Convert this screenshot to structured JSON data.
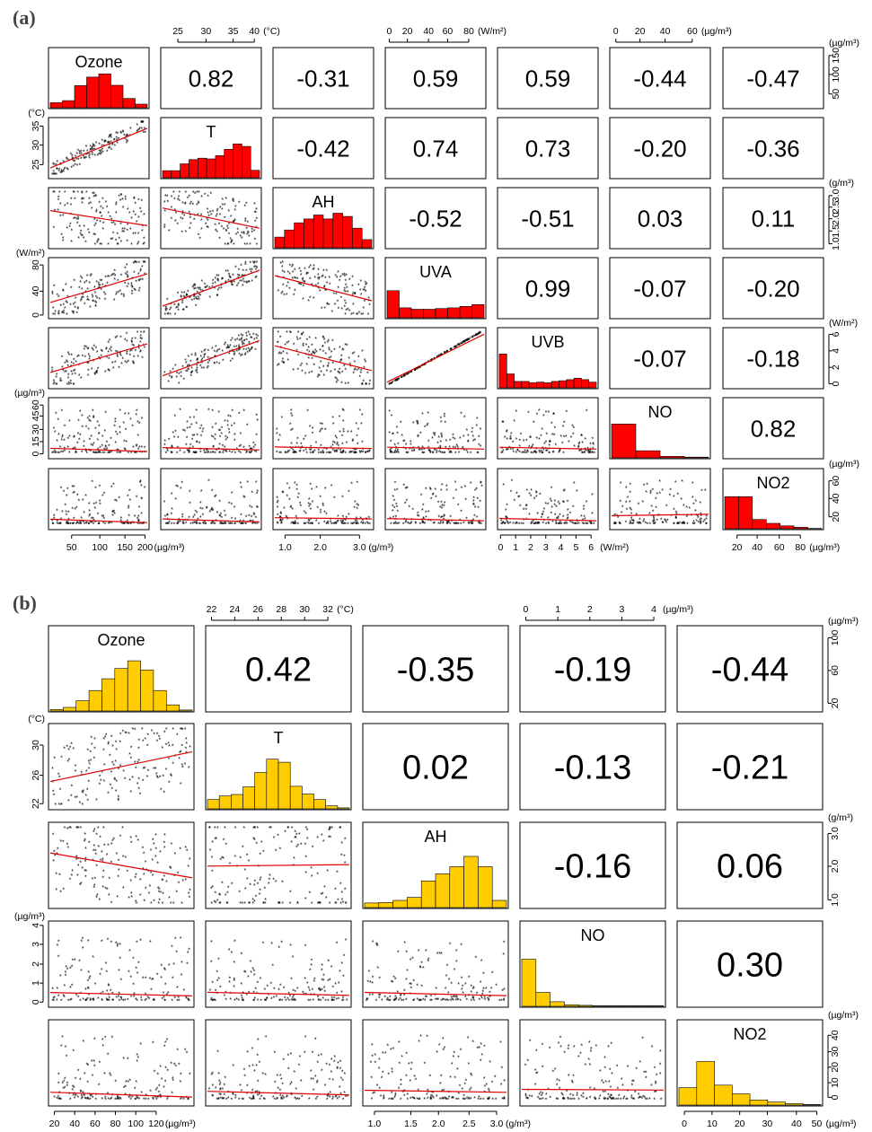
{
  "panel_a": {
    "label": "(a)",
    "variables": [
      "Ozone",
      "T",
      "AH",
      "UVA",
      "UVB",
      "NO",
      "NO2"
    ],
    "hist_color": "#ff0000",
    "correlations": [
      [
        "",
        "0.82",
        "-0.31",
        "0.59",
        "0.59",
        "-0.44",
        "-0.47"
      ],
      [
        "",
        "",
        "-0.42",
        "0.74",
        "0.73",
        "-0.20",
        "-0.36"
      ],
      [
        "",
        "",
        "",
        "-0.52",
        "-0.51",
        "0.03",
        "0.11"
      ],
      [
        "",
        "",
        "",
        "",
        "0.99",
        "-0.07",
        "-0.20"
      ],
      [
        "",
        "",
        "",
        "",
        "",
        "-0.07",
        "-0.18"
      ],
      [
        "",
        "",
        "",
        "",
        "",
        "",
        "0.82"
      ]
    ],
    "histograms": [
      [
        0.14,
        0.2,
        0.62,
        0.86,
        0.95,
        0.63,
        0.26,
        0.1
      ],
      [
        0.2,
        0.2,
        0.39,
        0.51,
        0.55,
        0.53,
        0.62,
        0.8,
        0.95,
        0.88,
        0.21
      ],
      [
        0.3,
        0.5,
        0.7,
        0.81,
        0.92,
        0.81,
        0.97,
        0.88,
        0.55,
        0.23
      ],
      [
        0.76,
        0.28,
        0.24,
        0.24,
        0.26,
        0.28,
        0.32,
        0.37
      ],
      [
        0.95,
        0.39,
        0.18,
        0.18,
        0.14,
        0.16,
        0.14,
        0.18,
        0.2,
        0.23,
        0.27,
        0.23,
        0.16
      ],
      [
        0.95,
        0.2,
        0.04,
        0.02
      ],
      [
        0.9,
        0.9,
        0.26,
        0.15,
        0.08,
        0.04,
        0.01
      ]
    ],
    "top_axes": [
      {
        "ticks": [
          "25",
          "30",
          "35",
          "40"
        ],
        "unit": "(°C)"
      },
      {
        "ticks": [
          "0",
          "20",
          "40",
          "60",
          "80"
        ],
        "unit": "(W/m²)"
      },
      {
        "ticks": [
          "0",
          "20",
          "40",
          "60"
        ],
        "unit": "(µg/m³)"
      }
    ],
    "bottom_axes": [
      {
        "ticks": [
          "50",
          "100",
          "150",
          "200"
        ],
        "unit": "(µg/m³)"
      },
      {
        "ticks": [
          "1.0",
          "2.0",
          "3.0"
        ],
        "unit": "(g/m³)"
      },
      {
        "ticks": [
          "0",
          "1",
          "2",
          "3",
          "4",
          "5",
          "6"
        ],
        "unit": "(W/m²)"
      },
      {
        "ticks": [
          "20",
          "40",
          "60",
          "80"
        ],
        "unit": "(µg/m³)"
      }
    ],
    "left_axes": [
      {
        "ticks": [
          "25",
          "30",
          "35"
        ],
        "unit": "(°C)"
      },
      {
        "ticks": [
          "0",
          "40",
          "80"
        ],
        "unit": "(W/m²)"
      },
      {
        "ticks": [
          "0",
          "15",
          "30",
          "45",
          "60"
        ],
        "unit": "(µg/m³)"
      }
    ],
    "right_axes": [
      {
        "ticks": [
          "50",
          "100",
          "150"
        ],
        "unit": "(µg/m³)"
      },
      {
        "ticks": [
          "1.0",
          "1.5",
          "2.0",
          "2.5",
          "3.0"
        ],
        "unit": "(g/m³)"
      },
      {
        "ticks": [
          "0",
          "2",
          "4",
          "6"
        ],
        "unit": "(W/m²)"
      },
      {
        "ticks": [
          "20",
          "40",
          "60"
        ],
        "unit": "(µg/m³)"
      }
    ]
  },
  "panel_b": {
    "label": "(b)",
    "variables": [
      "Ozone",
      "T",
      "AH",
      "NO",
      "NO2"
    ],
    "hist_color": "#ffcc00",
    "correlations": [
      [
        "",
        "0.42",
        "-0.35",
        "-0.19",
        "-0.44"
      ],
      [
        "",
        "",
        "0.02",
        "-0.13",
        "-0.21"
      ],
      [
        "",
        "",
        "",
        "-0.16",
        "0.06"
      ],
      [
        "",
        "",
        "",
        "",
        "0.30"
      ]
    ],
    "histograms": [
      [
        0.03,
        0.07,
        0.2,
        0.4,
        0.63,
        0.83,
        0.98,
        0.8,
        0.4,
        0.12,
        0.02
      ],
      [
        0.18,
        0.25,
        0.28,
        0.43,
        0.71,
        0.97,
        0.91,
        0.44,
        0.29,
        0.18,
        0.06,
        0.02
      ],
      [
        0.09,
        0.1,
        0.14,
        0.2,
        0.52,
        0.66,
        0.8,
        1.0,
        0.8,
        0.14
      ],
      [
        0.92,
        0.27,
        0.09,
        0.03,
        0.02,
        0.01,
        0.01,
        0.01,
        0.01,
        0.01
      ],
      [
        0.34,
        0.85,
        0.39,
        0.22,
        0.1,
        0.06,
        0.03,
        0.01
      ]
    ],
    "top_axes": [
      {
        "ticks": [
          "22",
          "24",
          "26",
          "28",
          "30",
          "32"
        ],
        "unit": "(°C)"
      },
      {
        "ticks": [
          "0",
          "1",
          "2",
          "3",
          "4"
        ],
        "unit": "(µg/m³)"
      }
    ],
    "bottom_axes": [
      {
        "ticks": [
          "20",
          "40",
          "60",
          "80",
          "100",
          "120"
        ],
        "unit": "(µg/m³)"
      },
      {
        "ticks": [
          "1.0",
          "1.5",
          "2.0",
          "2.5",
          "3.0"
        ],
        "unit": "(g/m³)"
      },
      {
        "ticks": [
          "0",
          "10",
          "20",
          "30",
          "40",
          "50"
        ],
        "unit": "(µg/m³)"
      }
    ],
    "left_axes": [
      {
        "ticks": [
          "22",
          "26",
          "30"
        ],
        "unit": "(°C)"
      },
      {
        "ticks": [
          "0",
          "1",
          "2",
          "3",
          "4"
        ],
        "unit": "(µg/m³)"
      }
    ],
    "right_axes": [
      {
        "ticks": [
          "20",
          "60",
          "100"
        ],
        "unit": "(µg/m³)"
      },
      {
        "ticks": [
          "1.0",
          "2.0",
          "3.0"
        ],
        "unit": "(g/m³)"
      },
      {
        "ticks": [
          "0",
          "10",
          "20",
          "30",
          "40"
        ],
        "unit": "(µg/m³)"
      }
    ]
  },
  "chart_data": [
    {
      "type": "scatter",
      "label": "(a)",
      "variables": [
        "Ozone",
        "T",
        "AH",
        "UVA",
        "UVB",
        "NO",
        "NO2"
      ],
      "correlation_matrix": [
        [
          null,
          0.82,
          -0.31,
          0.59,
          0.59,
          -0.44,
          -0.47
        ],
        [
          0.82,
          null,
          -0.42,
          0.74,
          0.73,
          -0.2,
          -0.36
        ],
        [
          -0.31,
          -0.42,
          null,
          -0.52,
          -0.51,
          0.03,
          0.11
        ],
        [
          0.59,
          0.74,
          -0.52,
          null,
          0.99,
          -0.07,
          -0.2
        ],
        [
          0.59,
          0.73,
          -0.51,
          0.99,
          null,
          -0.07,
          -0.18
        ],
        [
          -0.44,
          -0.2,
          0.03,
          -0.07,
          -0.07,
          null,
          0.82
        ],
        [
          -0.47,
          -0.36,
          0.11,
          -0.2,
          -0.18,
          0.82,
          null
        ]
      ]
    },
    {
      "type": "scatter",
      "label": "(b)",
      "variables": [
        "Ozone",
        "T",
        "AH",
        "NO",
        "NO2"
      ],
      "correlation_matrix": [
        [
          null,
          0.42,
          -0.35,
          -0.19,
          -0.44
        ],
        [
          0.42,
          null,
          0.02,
          -0.13,
          -0.21
        ],
        [
          -0.35,
          0.02,
          null,
          -0.16,
          0.06
        ],
        [
          -0.19,
          -0.13,
          -0.16,
          null,
          0.3
        ],
        [
          -0.44,
          -0.21,
          0.06,
          0.3,
          null
        ]
      ]
    }
  ]
}
